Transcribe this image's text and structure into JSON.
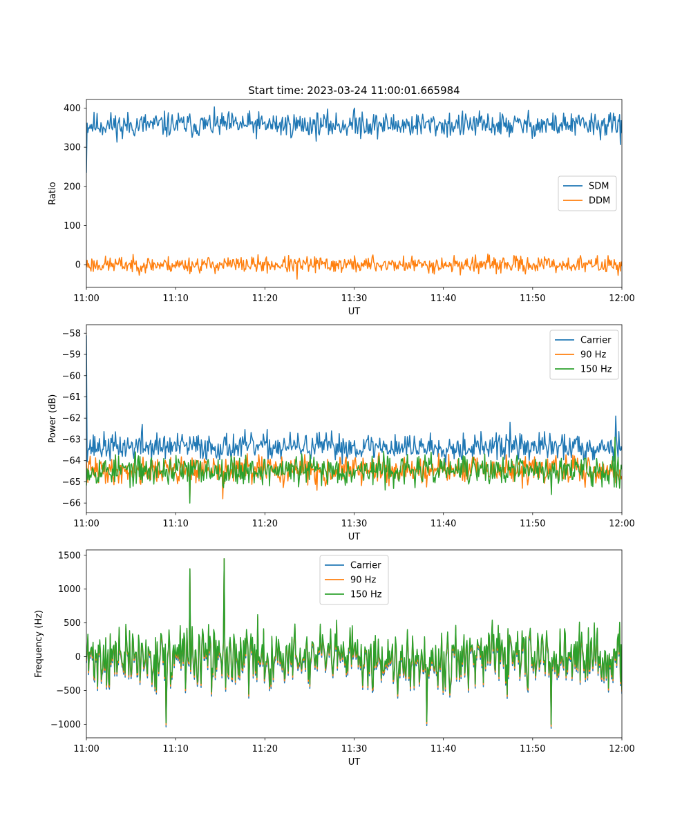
{
  "colors": {
    "c0": "#1f77b4",
    "c1": "#ff7f0e",
    "c2": "#2ca02c"
  },
  "chart_data": [
    {
      "type": "line",
      "title": "Start time: 2023-03-24 11:00:01.665984",
      "xlabel": "UT",
      "ylabel": "Ratio",
      "xlim": [
        0,
        60
      ],
      "ylim": [
        -58,
        422
      ],
      "xticks": [
        0,
        10,
        20,
        30,
        40,
        50,
        60
      ],
      "xticklabels": [
        "11:00",
        "11:10",
        "11:20",
        "11:30",
        "11:40",
        "11:50",
        "12:00"
      ],
      "yticks": [
        0,
        100,
        200,
        300,
        400
      ],
      "yticklabels": [
        "0",
        "100",
        "200",
        "300",
        "400"
      ],
      "legend_position": "center-right",
      "series": [
        {
          "name": "SDM",
          "color": "#1f77b4",
          "base": 357,
          "amp": 28,
          "start": 235,
          "seed": 11,
          "spikes": [
            [
              30.0,
              400
            ],
            [
              30.9,
              390
            ],
            [
              59.8,
              307
            ],
            [
              4.0,
              322
            ]
          ]
        },
        {
          "name": "DDM",
          "color": "#ff7f0e",
          "base": 0,
          "amp": 18,
          "seed": 23,
          "spikes": [
            [
              23.6,
              -37
            ],
            [
              5.2,
              26
            ],
            [
              32.1,
              25
            ],
            [
              43.6,
              25
            ]
          ]
        }
      ]
    },
    {
      "type": "line",
      "title": "",
      "xlabel": "UT",
      "ylabel": "Power (dB)",
      "xlim": [
        0,
        60
      ],
      "ylim": [
        -66.45,
        -57.6
      ],
      "xticks": [
        0,
        10,
        20,
        30,
        40,
        50,
        60
      ],
      "xticklabels": [
        "11:00",
        "11:10",
        "11:20",
        "11:30",
        "11:40",
        "11:50",
        "12:00"
      ],
      "yticks": [
        -66,
        -65,
        -64,
        -63,
        -62,
        -61,
        -60,
        -59,
        -58
      ],
      "yticklabels": [
        "−66",
        "−65",
        "−64",
        "−63",
        "−62",
        "−61",
        "−60",
        "−59",
        "−58"
      ],
      "legend_position": "top-right",
      "series": [
        {
          "name": "Carrier",
          "color": "#1f77b4",
          "base": -63.35,
          "amp": 0.55,
          "start": -58.1,
          "seed": 37,
          "spikes": [
            [
              59.3,
              -61.9
            ],
            [
              47.5,
              -62.2
            ],
            [
              6.3,
              -62.3
            ]
          ]
        },
        {
          "name": "90 Hz",
          "color": "#ff7f0e",
          "base": -64.45,
          "amp": 0.55,
          "seed": 41,
          "spikes": [
            [
              11.6,
              -65.8
            ],
            [
              15.3,
              -65.8
            ],
            [
              25.8,
              -65.4
            ]
          ]
        },
        {
          "name": "150 Hz",
          "color": "#2ca02c",
          "base": -64.45,
          "amp": 0.6,
          "seed": 53,
          "spikes": [
            [
              11.6,
              -66.0
            ],
            [
              52.1,
              -65.6
            ],
            [
              59.7,
              -65.3
            ],
            [
              59.2,
              -62.9
            ]
          ]
        }
      ]
    },
    {
      "type": "line",
      "title": "",
      "xlabel": "UT",
      "ylabel": "Frequency (Hz)",
      "xlim": [
        0,
        60
      ],
      "ylim": [
        -1200,
        1580
      ],
      "xticks": [
        0,
        10,
        20,
        30,
        40,
        50,
        60
      ],
      "xticklabels": [
        "11:00",
        "11:10",
        "11:20",
        "11:30",
        "11:40",
        "11:50",
        "12:00"
      ],
      "yticks": [
        -1000,
        -500,
        0,
        500,
        1000,
        1500
      ],
      "yticklabels": [
        "−1000",
        "−500",
        "0",
        "500",
        "1000",
        "1500"
      ],
      "legend_position": "top-center",
      "series": [
        {
          "name": "Carrier",
          "color": "#1f77b4",
          "base": 0,
          "amp": 380,
          "seed": 71,
          "offset": -60,
          "spikes": [
            [
              15.4,
              1450
            ],
            [
              11.6,
              1300
            ],
            [
              8.9,
              -1040
            ],
            [
              52.1,
              -1060
            ],
            [
              38.1,
              -1020
            ]
          ]
        },
        {
          "name": "90 Hz",
          "color": "#ff7f0e",
          "base": 0,
          "amp": 380,
          "seed": 71,
          "offset": -30,
          "spikes": [
            [
              15.4,
              1450
            ],
            [
              11.6,
              1300
            ],
            [
              8.9,
              -1010
            ],
            [
              52.1,
              -1030
            ],
            [
              38.1,
              -990
            ]
          ]
        },
        {
          "name": "150 Hz",
          "color": "#2ca02c",
          "base": 0,
          "amp": 380,
          "seed": 71,
          "offset": 0,
          "spikes": [
            [
              15.4,
              1450
            ],
            [
              11.6,
              1300
            ],
            [
              8.9,
              -980
            ],
            [
              52.1,
              -1000
            ],
            [
              38.1,
              -960
            ]
          ]
        }
      ]
    }
  ]
}
